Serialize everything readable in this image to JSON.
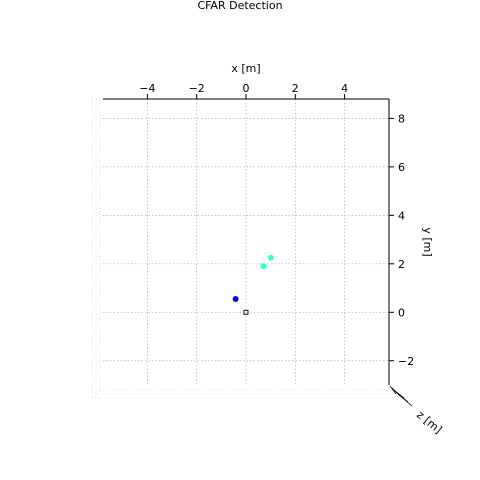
{
  "chart_data": {
    "type": "scatter",
    "title": "CFAR Detection",
    "xlabel": "x [m]",
    "ylabel": "y [m]",
    "zlabel": "z [m]",
    "xlim": [
      -5.8,
      5.8
    ],
    "ylim": [
      -3.0,
      8.8
    ],
    "x_ticks": [
      -4,
      -2,
      0,
      2,
      4
    ],
    "x_tick_labels": [
      "−4",
      "−2",
      "0",
      "2",
      "4"
    ],
    "y_ticks": [
      -2,
      0,
      2,
      4,
      6,
      8
    ],
    "y_tick_labels": [
      "−2",
      "0",
      "2",
      "4",
      "6",
      "8"
    ],
    "grid": true,
    "radar_marker": {
      "x": 0,
      "y": 0,
      "shape": "open-square",
      "color": "#000000"
    },
    "points": [
      {
        "x": -0.42,
        "y": 0.55,
        "color": "#0000dd"
      },
      {
        "x": 0.72,
        "y": 1.9,
        "color": "#33ffd0"
      },
      {
        "x": 1.0,
        "y": 2.25,
        "color": "#44ffb8"
      }
    ]
  }
}
